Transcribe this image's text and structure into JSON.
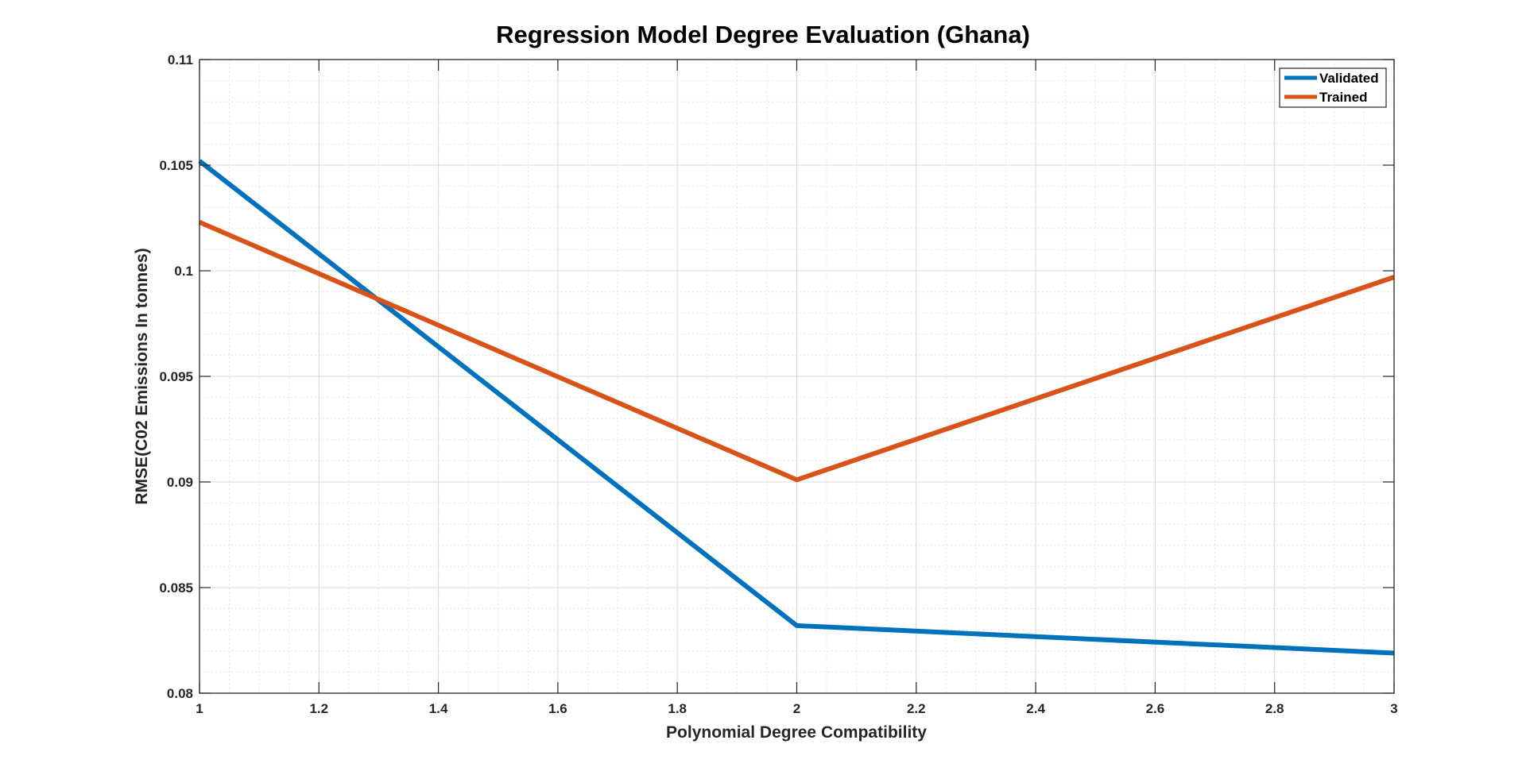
{
  "chart_data": {
    "type": "line",
    "title": "Regression Model Degree Evaluation (Ghana)",
    "xlabel": "Polynomial Degree Compatibility",
    "ylabel": "RMSE(C02 Emissions In tonnes)",
    "xlim": [
      1,
      3
    ],
    "ylim": [
      0.08,
      0.11
    ],
    "xticks": [
      1,
      1.2,
      1.4,
      1.6,
      1.8,
      2,
      2.2,
      2.4,
      2.6,
      2.8,
      3
    ],
    "xtick_labels": [
      "1",
      "1.2",
      "1.4",
      "1.6",
      "1.8",
      "2",
      "2.2",
      "2.4",
      "2.6",
      "2.8",
      "3"
    ],
    "yticks": [
      0.08,
      0.085,
      0.09,
      0.095,
      0.1,
      0.105,
      0.11
    ],
    "ytick_labels": [
      "0.08",
      "0.085",
      "0.09",
      "0.095",
      "0.1",
      "0.105",
      "0.11"
    ],
    "grid": true,
    "minor_grid": true,
    "legend_position": "top-right",
    "x": [
      1,
      2,
      3
    ],
    "series": [
      {
        "name": "Validated",
        "values": [
          0.1052,
          0.0832,
          0.0819
        ],
        "color": "#0072BD"
      },
      {
        "name": "Trained",
        "values": [
          0.1023,
          0.0901,
          0.0997
        ],
        "color": "#D95319"
      }
    ]
  }
}
